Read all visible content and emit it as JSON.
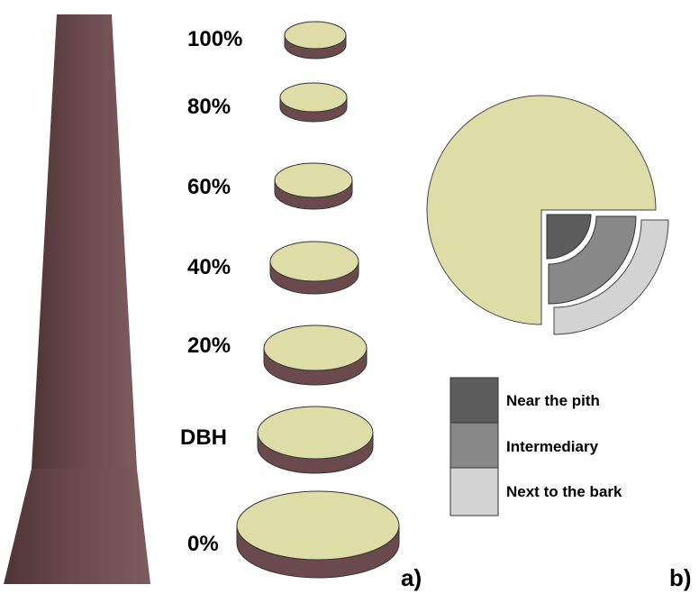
{
  "panel_a": {
    "label": "a)",
    "stem_color": "#6f4e51",
    "disc_top_color": "#dedca7",
    "disc_side_color": "#6b4a4e",
    "heights": [
      {
        "label": "100%"
      },
      {
        "label": "80%"
      },
      {
        "label": "60%"
      },
      {
        "label": "40%"
      },
      {
        "label": "20%"
      },
      {
        "label": "DBH"
      },
      {
        "label": "0%"
      }
    ]
  },
  "panel_b": {
    "label": "b)",
    "cross_section_color": "#dedca7",
    "legend": [
      {
        "label": "Near the pith",
        "color": "#5d5d5d"
      },
      {
        "label": "Intermediary",
        "color": "#888888"
      },
      {
        "label": "Next to the bark",
        "color": "#d3d3d3"
      }
    ]
  }
}
